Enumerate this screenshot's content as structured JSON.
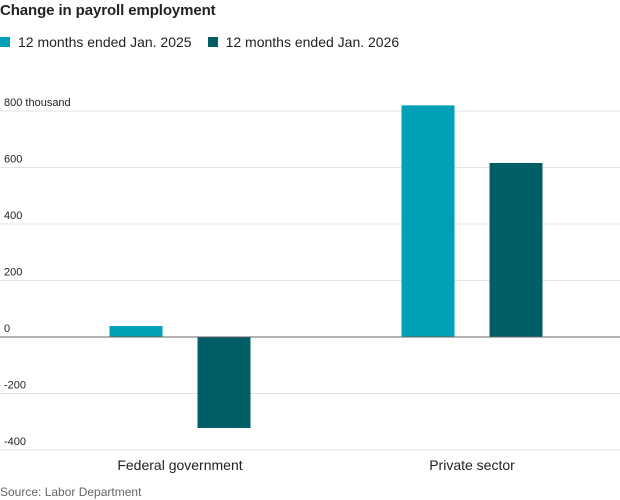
{
  "chart_data": {
    "type": "bar",
    "title": "Change in payroll employment",
    "categories": [
      "Federal government",
      "Private sector"
    ],
    "series": [
      {
        "name": "12 months ended Jan. 2025",
        "values": [
          39,
          820
        ],
        "color": "#00a0b8"
      },
      {
        "name": "12 months ended Jan. 2026",
        "values": [
          -322,
          616
        ],
        "color": "#005f66"
      }
    ],
    "y_ticks": [
      800,
      600,
      400,
      200,
      0,
      -200,
      -400
    ],
    "y_tick_labels": [
      "800 thousand",
      "600",
      "400",
      "200",
      "0",
      "-200",
      "-400"
    ],
    "ylim": [
      -400,
      800
    ],
    "xlabel": "",
    "ylabel": "",
    "grid": true,
    "legend": "top-left",
    "source": "Source: Labor Department"
  }
}
